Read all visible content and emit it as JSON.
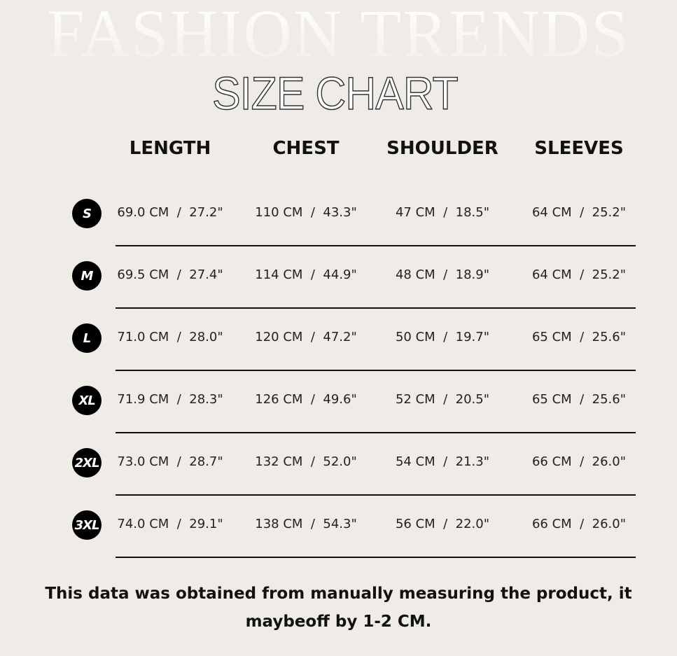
{
  "background_title": "FASHION TRENDS",
  "title": "SIZE CHART",
  "headers": [
    "LENGTH",
    "CHEST",
    "SHOULDER",
    "SLEEVES"
  ],
  "rows": [
    {
      "size": "S",
      "cells": [
        "69.0 CM  /  27.2\"",
        "110 CM  /  43.3\"",
        "47 CM  /  18.5\"",
        "64 CM  /  25.2\""
      ]
    },
    {
      "size": "M",
      "cells": [
        "69.5 CM  /  27.4\"",
        "114 CM  /  44.9\"",
        "48 CM  /  18.9\"",
        "64 CM  /  25.2\""
      ]
    },
    {
      "size": "L",
      "cells": [
        "71.0 CM  /  28.0\"",
        "120 CM  /  47.2\"",
        "50 CM  /  19.7\"",
        "65 CM  /  25.6\""
      ]
    },
    {
      "size": "XL",
      "cells": [
        "71.9 CM  /  28.3\"",
        "126 CM  /  49.6\"",
        "52 CM  /  20.5\"",
        "65 CM  /  25.6\""
      ]
    },
    {
      "size": "2XL",
      "cells": [
        "73.0 CM  /  28.7\"",
        "132 CM  /  52.0\"",
        "54 CM  /  21.3\"",
        "66 CM  /  26.0\""
      ]
    },
    {
      "size": "3XL",
      "cells": [
        "74.0 CM  /  29.1\"",
        "138 CM  /  54.3\"",
        "56 CM  /  22.0\"",
        "66 CM  /  26.0\""
      ]
    }
  ],
  "footnote": "This data was obtained from manually measuring the product, it maybeoff by 1-2 CM."
}
